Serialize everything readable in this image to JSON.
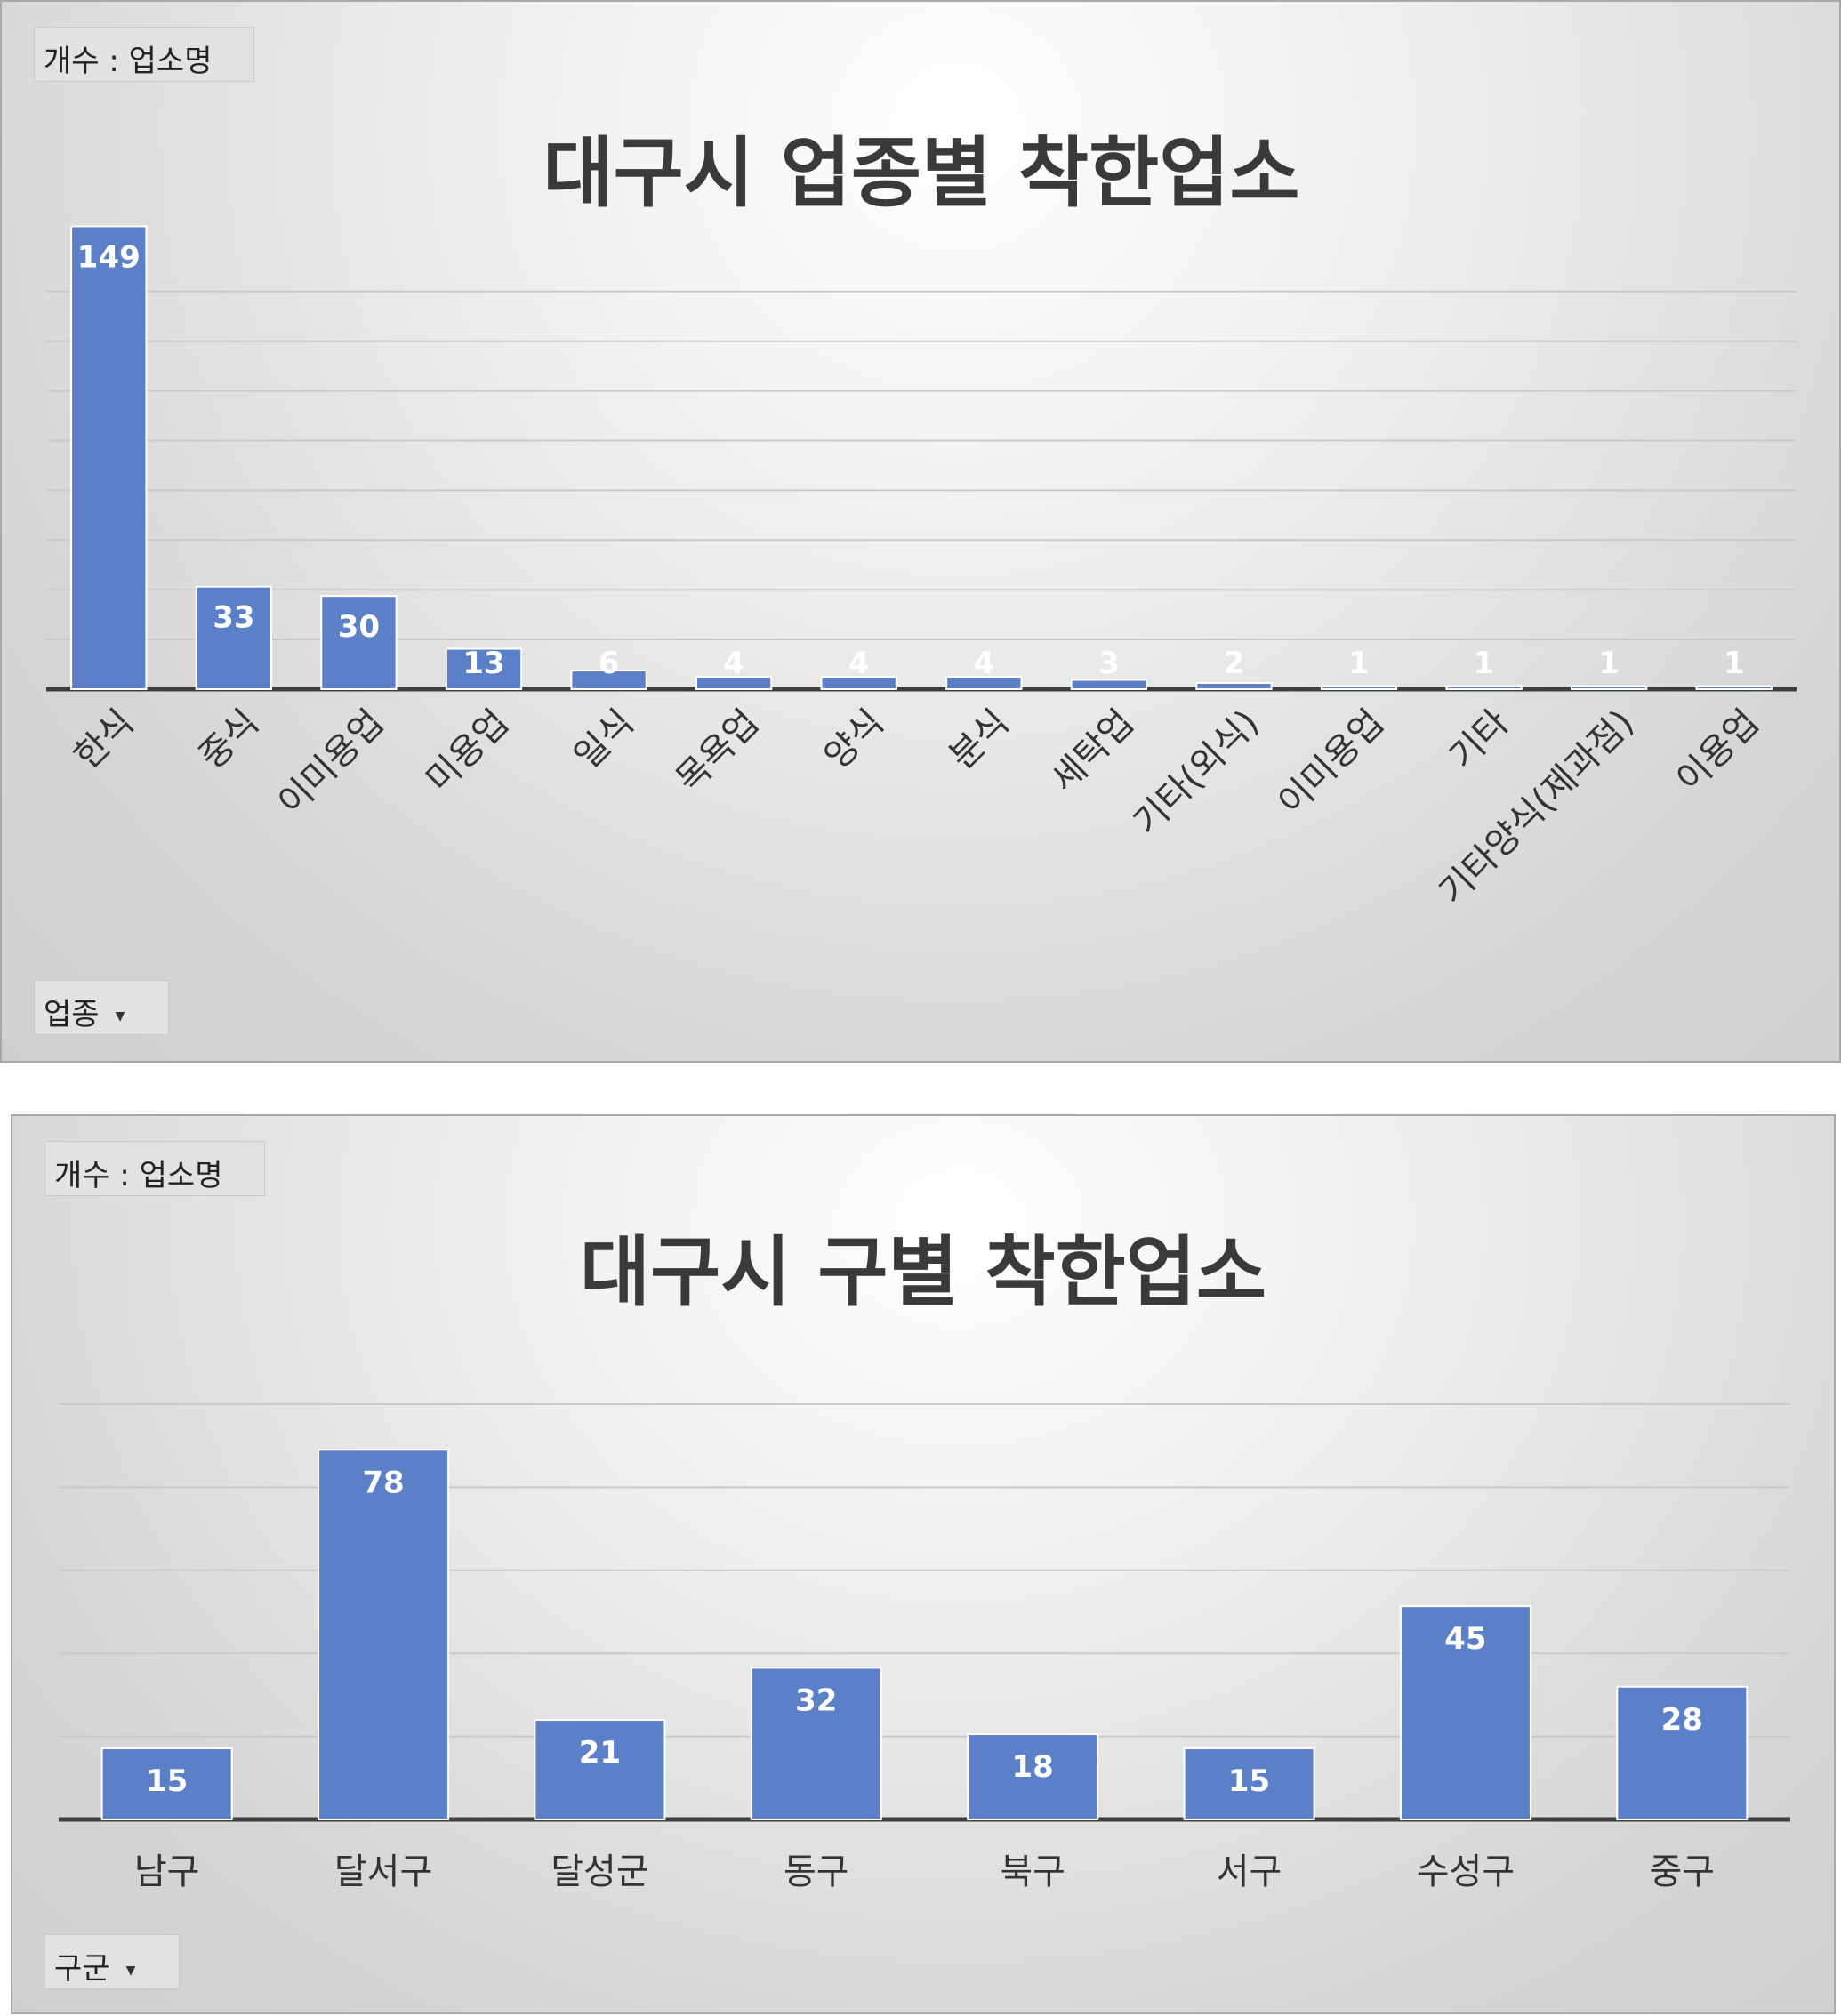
{
  "chart_data": [
    {
      "type": "bar",
      "title": "대구시 업종별 착한업소",
      "value_field_label": "개수 : 업소명",
      "axis_field_label": "업종",
      "categories": [
        "한식",
        "중식",
        "이미용업",
        "미용업",
        "일식",
        "목욕업",
        "양식",
        "분식",
        "세탁업",
        "기타(외식)",
        "이미용업",
        "기타",
        "기타양식(제과점)",
        "이용업"
      ],
      "values": [
        149,
        33,
        30,
        13,
        6,
        4,
        4,
        4,
        3,
        2,
        1,
        1,
        1,
        1
      ],
      "ylim": [
        0,
        160
      ],
      "grid": true,
      "legend": "none",
      "bar_color": "#5b80c8"
    },
    {
      "type": "bar",
      "title": "대구시 구별 착한업소",
      "value_field_label": "개수 : 업소명",
      "axis_field_label": "구군",
      "categories": [
        "남구",
        "달서구",
        "달성군",
        "동구",
        "북구",
        "서구",
        "수성구",
        "중구"
      ],
      "values": [
        15,
        78,
        21,
        32,
        18,
        15,
        45,
        28
      ],
      "ylim": [
        0,
        100
      ],
      "grid": true,
      "legend": "none",
      "bar_color": "#5b80c8"
    }
  ]
}
